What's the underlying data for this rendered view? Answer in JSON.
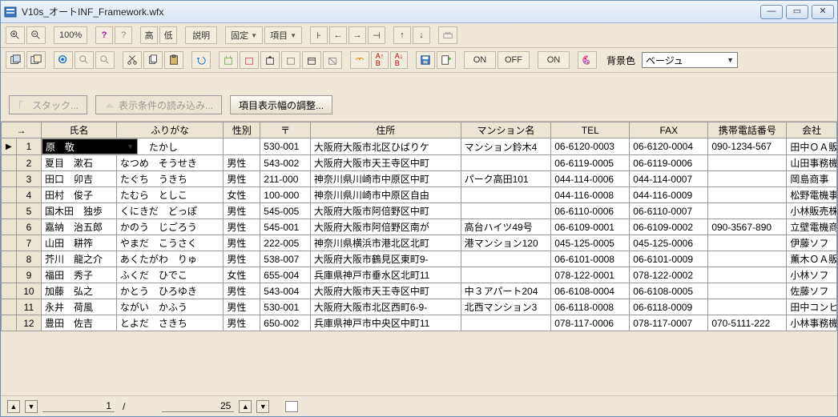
{
  "window": {
    "title": "V10s_オートINF_Framework.wfx"
  },
  "toolbar1": {
    "zoom_pct": "100%",
    "high": "高",
    "low": "低",
    "explain": "説明",
    "fixed": "固定",
    "item": "項目"
  },
  "toolbar2": {
    "on": "ON",
    "off": "OFF",
    "bg_label": "背景色",
    "bg_value": "ベージュ"
  },
  "midbar": {
    "stack": "スタック...",
    "load_cond": "表示条件の読み込み...",
    "adjust_width": "項目表示幅の調整..."
  },
  "columns": {
    "arrow": "→",
    "name": "氏名",
    "furigana": "ふりがな",
    "gender": "性別",
    "zip": "〒",
    "address": "住所",
    "mansion": "マンション名",
    "tel": "TEL",
    "fax": "FAX",
    "mobile": "携帯電話番号",
    "company": "会社"
  },
  "rows": [
    {
      "n": "1",
      "mark": "▶",
      "name": "原　敬",
      "furi": "はら　たかし",
      "gender": "",
      "zip": "530-001",
      "addr": "大阪府大阪市北区ひばりケ",
      "man": "マンション鈴木4",
      "tel": "06-6120-0003",
      "fax": "06-6120-0004",
      "mob": "090-1234-567",
      "co": "田中ＯＡ販"
    },
    {
      "n": "2",
      "mark": "",
      "name": "夏目　漱石",
      "furi": "なつめ　そうせき",
      "gender": "男性",
      "zip": "543-002",
      "addr": "大阪府大阪市天王寺区中町",
      "man": "",
      "tel": "06-6119-0005",
      "fax": "06-6119-0006",
      "mob": "",
      "co": "山田事務機"
    },
    {
      "n": "3",
      "mark": "",
      "name": "田口　卯吉",
      "furi": "たぐち　うきち",
      "gender": "男性",
      "zip": "211-000",
      "addr": "神奈川県川崎市中原区中町",
      "man": "パーク高田101",
      "tel": "044-114-0006",
      "fax": "044-114-0007",
      "mob": "",
      "co": "岡島商事"
    },
    {
      "n": "4",
      "mark": "",
      "name": "田村　俊子",
      "furi": "たむら　としこ",
      "gender": "女性",
      "zip": "100-000",
      "addr": "神奈川県川崎市中原区自由",
      "man": "",
      "tel": "044-116-0008",
      "fax": "044-116-0009",
      "mob": "",
      "co": "松野電機事"
    },
    {
      "n": "5",
      "mark": "",
      "name": "国木田　独歩",
      "furi": "くにきだ　どっぽ",
      "gender": "男性",
      "zip": "545-005",
      "addr": "大阪府大阪市阿倍野区中町",
      "man": "",
      "tel": "06-6110-0006",
      "fax": "06-6110-0007",
      "mob": "",
      "co": "小林販売株"
    },
    {
      "n": "6",
      "mark": "",
      "name": "嘉納　治五郎",
      "furi": "かのう　じごろう",
      "gender": "男性",
      "zip": "545-001",
      "addr": "大阪府大阪市阿倍野区南が",
      "man": "高台ハイツ49号",
      "tel": "06-6109-0001",
      "fax": "06-6109-0002",
      "mob": "090-3567-890",
      "co": "立壁電機商"
    },
    {
      "n": "7",
      "mark": "",
      "name": "山田　耕筰",
      "furi": "やまだ　こうさく",
      "gender": "男性",
      "zip": "222-005",
      "addr": "神奈川県横浜市港北区北町",
      "man": "港マンション120",
      "tel": "045-125-0005",
      "fax": "045-125-0006",
      "mob": "",
      "co": "伊藤ソフ"
    },
    {
      "n": "8",
      "mark": "",
      "name": "芥川　龍之介",
      "furi": "あくたがわ　りゅ",
      "gender": "男性",
      "zip": "538-007",
      "addr": "大阪府大阪市鶴見区東町9-",
      "man": "",
      "tel": "06-6101-0008",
      "fax": "06-6101-0009",
      "mob": "",
      "co": "薫木ＯＡ販"
    },
    {
      "n": "9",
      "mark": "",
      "name": "福田　秀子",
      "furi": "ふくだ　ひでこ",
      "gender": "女性",
      "zip": "655-004",
      "addr": "兵庫県神戸市垂水区北町11",
      "man": "",
      "tel": "078-122-0001",
      "fax": "078-122-0002",
      "mob": "",
      "co": "小林ソフ"
    },
    {
      "n": "10",
      "mark": "",
      "name": "加藤　弘之",
      "furi": "かとう　ひろゆき",
      "gender": "男性",
      "zip": "543-004",
      "addr": "大阪府大阪市天王寺区中町",
      "man": "中３アパート204",
      "tel": "06-6108-0004",
      "fax": "06-6108-0005",
      "mob": "",
      "co": "佐藤ソフ"
    },
    {
      "n": "11",
      "mark": "",
      "name": "永井　荷風",
      "furi": "ながい　かふう",
      "gender": "男性",
      "zip": "530-001",
      "addr": "大阪府大阪市北区西町6-9-",
      "man": "北西マンション3",
      "tel": "06-6118-0008",
      "fax": "06-6118-0009",
      "mob": "",
      "co": "田中コンヒ"
    },
    {
      "n": "12",
      "mark": "",
      "name": "豊田　佐吉",
      "furi": "とよだ　さきち",
      "gender": "男性",
      "zip": "650-002",
      "addr": "兵庫県神戸市中央区中町11",
      "man": "",
      "tel": "078-117-0006",
      "fax": "078-117-0007",
      "mob": "070-5111-222",
      "co": "小林事務機"
    }
  ],
  "status": {
    "current": "1",
    "total": "25"
  },
  "colors": {
    "bg": "#efe8d8",
    "titlebar1": "#eef3fa",
    "titlebar2": "#d9e6f5",
    "selected_bg": "#000000",
    "selected_fg": "#ffffff"
  }
}
